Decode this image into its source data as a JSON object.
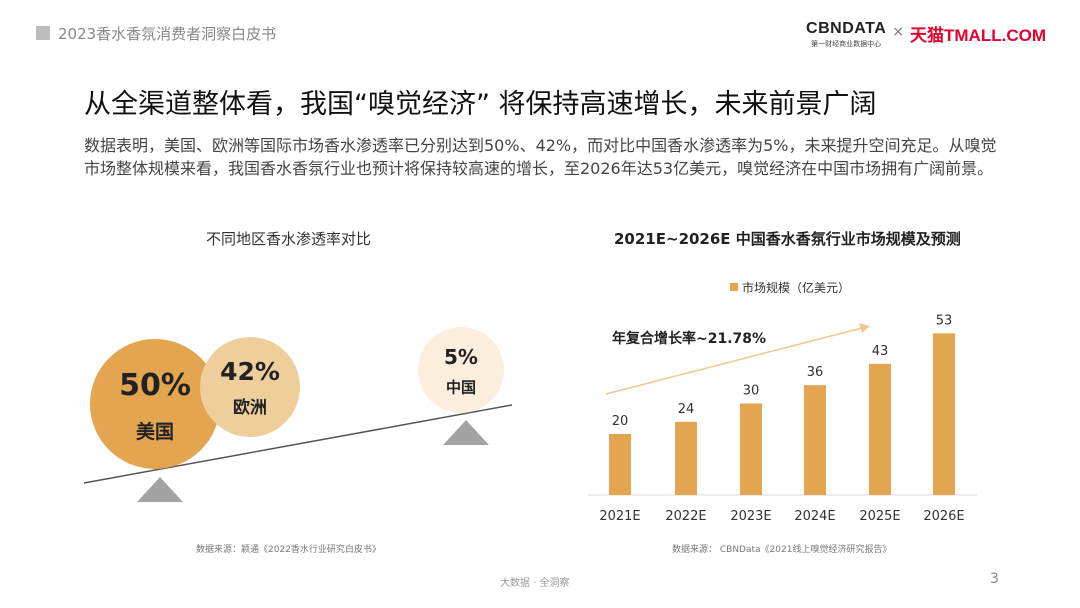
{
  "header": {
    "report_title": "2023香水香氛消费者洞察白皮书"
  },
  "brand": {
    "cbndata": "CBNDATA",
    "cbndata_sub": "第一财经商业数据中心",
    "separator": "×",
    "tmall": "天猫TMALL.COM"
  },
  "page": {
    "title": "从全渠道整体看，我国“嗅觉经济” 将保持高速增长，未来前景广阔",
    "description": "数据表明，美国、欧洲等国际市场香水渗透率已分别达到50%、42%，而对比中国香水渗透率为5%，未来提升空间充足。从嗅觉市场整体规模来看，我国香水香氛行业也预计将保持较高速的增长，至2026年达53亿美元，嗅觉经济在中国市场拥有广阔前景。"
  },
  "left_chart": {
    "title": "不同地区香水渗透率对比",
    "source": "数据来源：颖通《2022香水行业研究白皮书》",
    "regions": [
      {
        "label": "美国",
        "value_label": "50%"
      },
      {
        "label": "欧洲",
        "value_label": "42%"
      },
      {
        "label": "中国",
        "value_label": "5%"
      }
    ]
  },
  "right_chart": {
    "title": "2021E~2026E 中国香水香氛行业市场规模及预测",
    "source": "数据来源： CBNData《2021线上嗅觉经济研究报告》",
    "cagr_label": "年复合增长率~21.78%"
  },
  "footer": {
    "text": "大数据 · 全洞察",
    "page_number": "3"
  },
  "colors": {
    "accent": "#E3A550",
    "circle_us": "#E3A550",
    "circle_eu": "#EECF9C",
    "circle_cn": "#FBEEDC",
    "triangle": "#A3A3A3"
  },
  "chart_data": [
    {
      "type": "bubble",
      "title": "不同地区香水渗透率对比",
      "categories": [
        "美国",
        "欧洲",
        "中国"
      ],
      "values": [
        50,
        42,
        5
      ],
      "unit": "%"
    },
    {
      "type": "bar",
      "title": "2021E~2026E 中国香水香氛行业市场规模及预测",
      "categories": [
        "2021E",
        "2022E",
        "2023E",
        "2024E",
        "2025E",
        "2026E"
      ],
      "series": [
        {
          "name": "市场规模（亿美元）",
          "values": [
            20,
            24,
            30,
            36,
            43,
            53
          ]
        }
      ],
      "annotation": "年复合增长率~21.78%",
      "legend": "top-center",
      "grid": false
    }
  ]
}
